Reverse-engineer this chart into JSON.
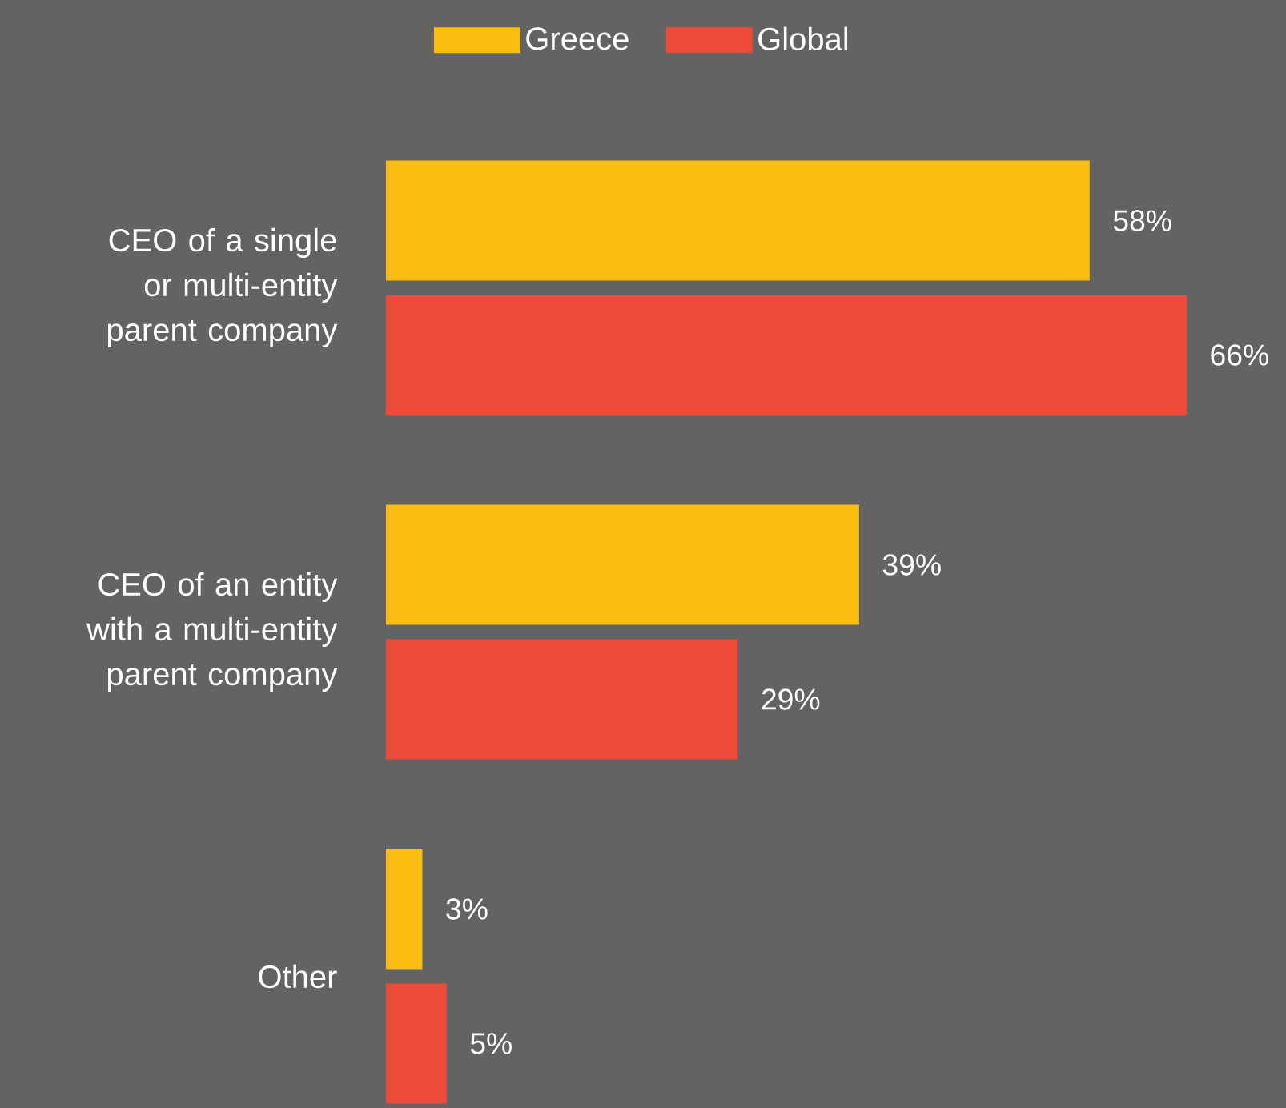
{
  "chart_data": {
    "type": "bar",
    "orientation": "horizontal",
    "categories": [
      "CEO of a single or multi-entity parent company",
      "CEO of an entity with a multi-entity parent company",
      "Other"
    ],
    "series": [
      {
        "name": "Greece",
        "color": "#fbbd12",
        "values": [
          58,
          39,
          3
        ],
        "value_labels": [
          "58%",
          "39%",
          "3%"
        ]
      },
      {
        "name": "Global",
        "color": "#ee4b3b",
        "values": [
          66,
          29,
          5
        ],
        "value_labels": [
          "66%",
          "29%",
          "5%"
        ]
      }
    ],
    "legend": "top",
    "tick_labels": "y"
  }
}
